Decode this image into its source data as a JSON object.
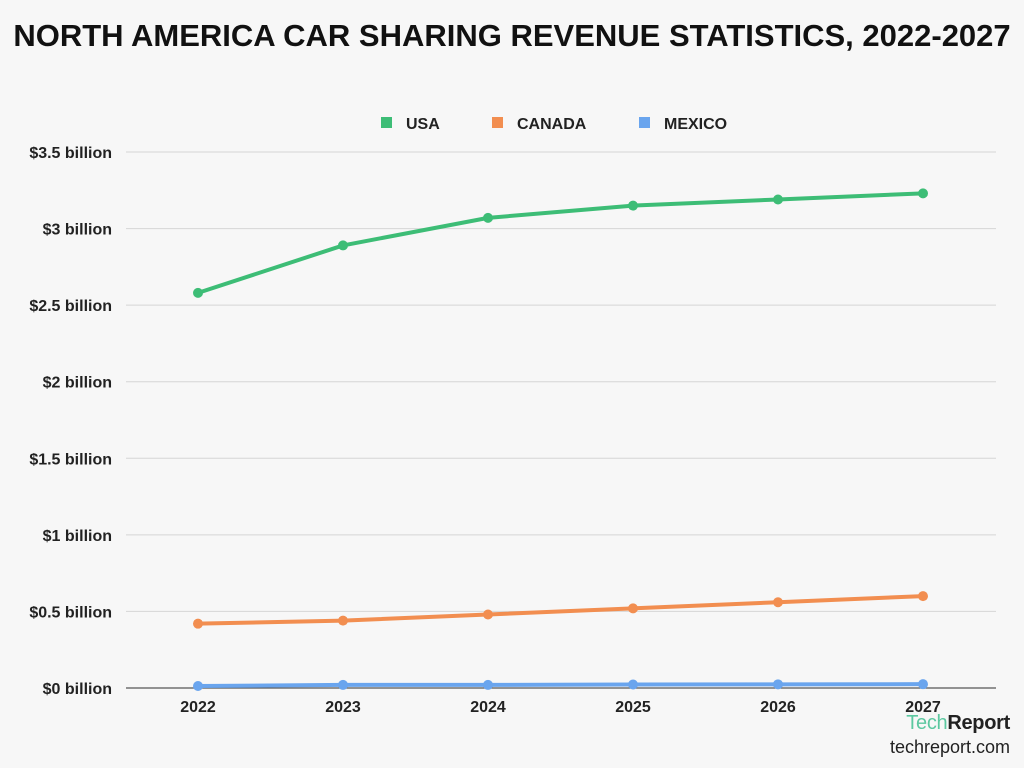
{
  "chart_data": {
    "type": "line",
    "title": "NORTH AMERICA CAR SHARING REVENUE STATISTICS, 2022-2027",
    "xlabel": "",
    "ylabel": "",
    "categories": [
      "2022",
      "2023",
      "2024",
      "2025",
      "2026",
      "2027"
    ],
    "ylim": [
      0,
      3.5
    ],
    "yticks": [
      {
        "value": 0,
        "label": "$0 billion"
      },
      {
        "value": 0.5,
        "label": "$0.5 billion"
      },
      {
        "value": 1,
        "label": "$1 billion"
      },
      {
        "value": 1.5,
        "label": "$1.5 billion"
      },
      {
        "value": 2,
        "label": "$2 billion"
      },
      {
        "value": 2.5,
        "label": "$2.5 billion"
      },
      {
        "value": 3,
        "label": "$3 billion"
      },
      {
        "value": 3.5,
        "label": "$3.5 billion"
      }
    ],
    "grid": true,
    "legend_position": "top",
    "series": [
      {
        "name": "USA",
        "color": "#3dbd76",
        "values": [
          2.58,
          2.89,
          3.07,
          3.15,
          3.19,
          3.23
        ]
      },
      {
        "name": "CANADA",
        "color": "#f28e50",
        "values": [
          0.42,
          0.44,
          0.48,
          0.52,
          0.56,
          0.6
        ]
      },
      {
        "name": "MEXICO",
        "color": "#6aa5ee",
        "values": [
          0.013,
          0.02,
          0.02,
          0.023,
          0.024,
          0.025
        ]
      }
    ]
  },
  "brand": {
    "logo_part1": "Tech",
    "logo_part2": "Report",
    "url": "techreport.com"
  }
}
